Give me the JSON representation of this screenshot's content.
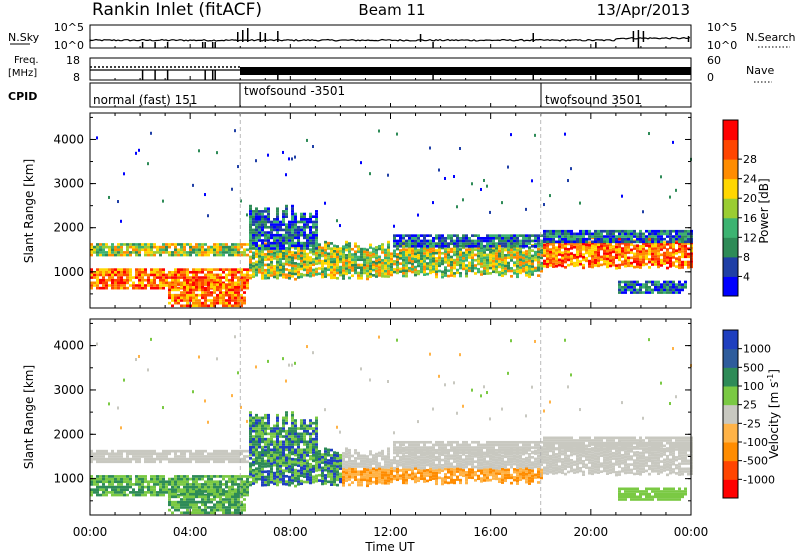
{
  "header": {
    "station": "Rankin Inlet (fitACF)",
    "beam": "Beam 11",
    "date": "13/Apr/2013"
  },
  "top_panels": {
    "nsky_label": "N.Sky",
    "nsky_ticks": [
      "10^5",
      "10^0"
    ],
    "nsearch_label": "N.Search",
    "nsearch_ticks": [
      "10^5",
      "10^0"
    ],
    "freq_label": "Freq.",
    "freq_unit": "[MHz]",
    "freq_ticks": [
      "18",
      "8"
    ],
    "nave_label": "Nave",
    "nave_ticks": [
      "60",
      "0"
    ],
    "cpid_label": "CPID",
    "cpid_segments": [
      {
        "name": "normal (fast) 151",
        "start_hr": 0
      },
      {
        "name": "twofsound -3501",
        "start_hr": 6
      },
      {
        "name": "twofsound 3501",
        "start_hr": 18
      }
    ]
  },
  "chart_data": [
    {
      "type": "heatmap",
      "name": "power",
      "ylabel": "Slant Range [km]",
      "ylim": [
        180,
        4600
      ],
      "yticks": [
        1000,
        2000,
        3000,
        4000
      ],
      "xlim": [
        0,
        24
      ],
      "colorbar": {
        "label": "Power [dB]",
        "ticks": [
          "4",
          "8",
          "12",
          "16",
          "20",
          "24",
          "28"
        ],
        "colors": [
          "#0000ff",
          "#1f3fa6",
          "#2e8b57",
          "#3cb371",
          "#9acd32",
          "#ffd700",
          "#ff8c00",
          "#ff4500",
          "#ff0000"
        ]
      }
    },
    {
      "type": "heatmap",
      "name": "velocity",
      "ylabel": "Slant Range [km]",
      "ylim": [
        180,
        4600
      ],
      "yticks": [
        1000,
        2000,
        3000,
        4000
      ],
      "xlim": [
        0,
        24
      ],
      "colorbar": {
        "label": "Velocity [m s",
        "label_sup": "-1",
        "label_end": "]",
        "ticks": [
          "1000",
          "500",
          "100",
          "25",
          "-25",
          "-100",
          "-500",
          "-1000"
        ],
        "colors": [
          "#1f3fbf",
          "#2e5c9c",
          "#2e8b57",
          "#7ac943",
          "#c8c8c0",
          "#ffb347",
          "#ff8c00",
          "#ff4500",
          "#ff0000"
        ]
      }
    }
  ],
  "x_axis": {
    "ticks": [
      "00:00",
      "04:00",
      "08:00",
      "12:00",
      "16:00",
      "20:00",
      "00:00"
    ],
    "label": "Time UT"
  }
}
